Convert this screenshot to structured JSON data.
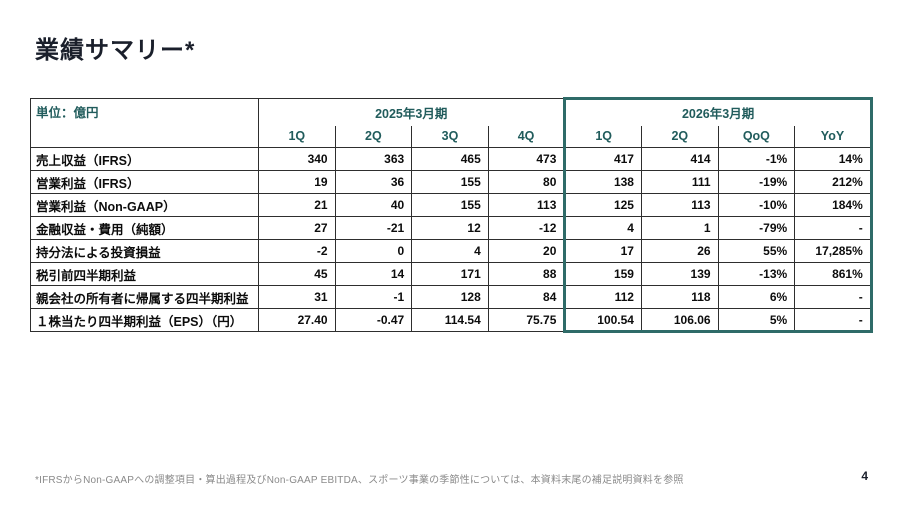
{
  "page": {
    "title": "業績サマリー*",
    "footnote": "*IFRSからNon-GAAPへの調整項目・算出過程及びNon-GAAP EBITDA、スポーツ事業の季節性については、本資料末尾の補足説明資料を参照",
    "page_number": "4"
  },
  "colors": {
    "highlight_border": "#2F6B68",
    "header_text": "#215C5C"
  },
  "table": {
    "unit_label": "単位：億円",
    "period_groups": [
      {
        "label": "2025年3月期",
        "columns": [
          "1Q",
          "2Q",
          "3Q",
          "4Q"
        ],
        "highlighted": false
      },
      {
        "label": "2026年3月期",
        "columns": [
          "1Q",
          "2Q",
          "QoQ",
          "YoY"
        ],
        "highlighted": true
      }
    ],
    "rows": [
      {
        "label": "売上収益（IFRS）",
        "values": [
          "340",
          "363",
          "465",
          "473",
          "417",
          "414",
          "-1%",
          "14%"
        ]
      },
      {
        "label": "営業利益（IFRS）",
        "values": [
          "19",
          "36",
          "155",
          "80",
          "138",
          "111",
          "-19%",
          "212%"
        ]
      },
      {
        "label": "営業利益（Non-GAAP）",
        "values": [
          "21",
          "40",
          "155",
          "113",
          "125",
          "113",
          "-10%",
          "184%"
        ]
      },
      {
        "label": "金融収益・費用（純額）",
        "values": [
          "27",
          "-21",
          "12",
          "-12",
          "4",
          "1",
          "-79%",
          "-"
        ]
      },
      {
        "label": "持分法による投資損益",
        "values": [
          "-2",
          "0",
          "4",
          "20",
          "17",
          "26",
          "55%",
          "17,285%"
        ]
      },
      {
        "label": "税引前四半期利益",
        "values": [
          "45",
          "14",
          "171",
          "88",
          "159",
          "139",
          "-13%",
          "861%"
        ]
      },
      {
        "label": "親会社の所有者に帰属する四半期利益",
        "values": [
          "31",
          "-1",
          "128",
          "84",
          "112",
          "118",
          "6%",
          "-"
        ]
      },
      {
        "label": "１株当たり四半期利益（EPS）（円）",
        "values": [
          "27.40",
          "-0.47",
          "114.54",
          "75.75",
          "100.54",
          "106.06",
          "5%",
          "-"
        ]
      }
    ]
  }
}
